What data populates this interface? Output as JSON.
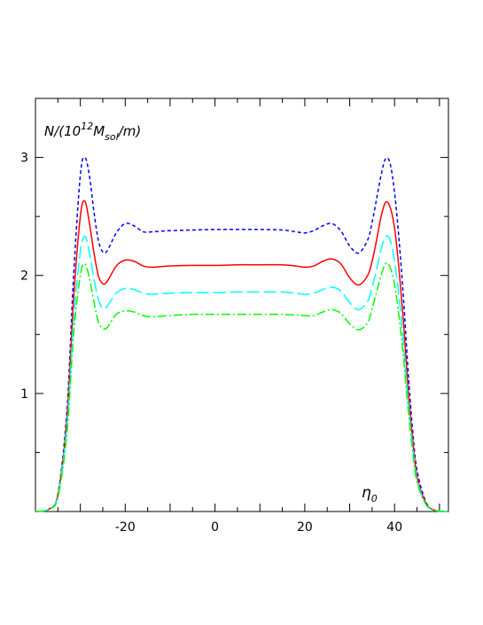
{
  "chart_data": {
    "type": "line",
    "title": "",
    "ylabel": {
      "prefix": "N/(10",
      "exp": "12",
      "mid": "M",
      "sub": "sol",
      "suffix": "/m)"
    },
    "xlabel": {
      "base": "η",
      "sub": "0"
    },
    "xlim": [
      -40,
      52
    ],
    "ylim": [
      0,
      3.5
    ],
    "xticks": [
      -20,
      0,
      20,
      40
    ],
    "xtick_labels": [
      "-20",
      "0",
      "20",
      "40"
    ],
    "yticks": [
      1,
      2,
      3
    ],
    "ytick_labels": [
      "1",
      "2",
      "3"
    ],
    "x": [
      -40,
      -37,
      -35,
      -33,
      -31.5,
      -30,
      -29,
      -28,
      -27,
      -26,
      -25,
      -24,
      -22,
      -20,
      -18,
      -16,
      -14,
      -10,
      -5,
      0,
      5,
      10,
      15,
      18,
      20,
      22,
      24,
      26,
      28,
      30,
      32,
      34,
      35,
      36,
      37,
      38,
      39,
      40,
      41,
      42,
      43,
      44,
      45,
      47,
      49,
      52
    ],
    "series": [
      {
        "color": "#0000ff",
        "dash": "4,3",
        "values": [
          0,
          0.02,
          0.15,
          0.85,
          2.0,
          2.85,
          3.0,
          2.85,
          2.55,
          2.3,
          2.2,
          2.21,
          2.36,
          2.44,
          2.42,
          2.37,
          2.37,
          2.38,
          2.385,
          2.39,
          2.39,
          2.39,
          2.385,
          2.37,
          2.36,
          2.38,
          2.42,
          2.44,
          2.38,
          2.25,
          2.19,
          2.3,
          2.45,
          2.65,
          2.85,
          2.99,
          2.95,
          2.7,
          2.3,
          1.8,
          1.2,
          0.7,
          0.35,
          0.08,
          0.01,
          0
        ]
      },
      {
        "color": "#ff0000",
        "dash": "",
        "values": [
          0,
          0.02,
          0.14,
          0.78,
          1.8,
          2.5,
          2.63,
          2.45,
          2.2,
          2.0,
          1.93,
          1.95,
          2.08,
          2.13,
          2.12,
          2.08,
          2.07,
          2.08,
          2.085,
          2.085,
          2.09,
          2.09,
          2.09,
          2.08,
          2.07,
          2.08,
          2.12,
          2.14,
          2.1,
          1.98,
          1.92,
          2.0,
          2.12,
          2.3,
          2.5,
          2.62,
          2.58,
          2.4,
          2.05,
          1.6,
          1.05,
          0.62,
          0.3,
          0.07,
          0.01,
          0
        ]
      },
      {
        "color": "#00ffff",
        "dash": "14,5",
        "values": [
          0,
          0.02,
          0.13,
          0.72,
          1.62,
          2.2,
          2.33,
          2.2,
          1.98,
          1.8,
          1.72,
          1.74,
          1.85,
          1.89,
          1.88,
          1.85,
          1.84,
          1.85,
          1.855,
          1.855,
          1.86,
          1.86,
          1.86,
          1.85,
          1.84,
          1.85,
          1.88,
          1.9,
          1.87,
          1.77,
          1.71,
          1.78,
          1.9,
          2.05,
          2.22,
          2.33,
          2.3,
          2.12,
          1.82,
          1.42,
          0.95,
          0.56,
          0.27,
          0.06,
          0.01,
          0
        ]
      },
      {
        "color": "#00ff00",
        "dash": "10,3,2,3",
        "values": [
          0,
          0.02,
          0.12,
          0.66,
          1.5,
          2.0,
          2.1,
          1.98,
          1.78,
          1.61,
          1.55,
          1.56,
          1.67,
          1.7,
          1.69,
          1.66,
          1.65,
          1.66,
          1.67,
          1.67,
          1.67,
          1.67,
          1.67,
          1.665,
          1.66,
          1.66,
          1.69,
          1.71,
          1.68,
          1.59,
          1.54,
          1.6,
          1.72,
          1.86,
          2.0,
          2.1,
          2.07,
          1.92,
          1.65,
          1.3,
          0.88,
          0.52,
          0.25,
          0.06,
          0.01,
          0
        ]
      }
    ]
  }
}
